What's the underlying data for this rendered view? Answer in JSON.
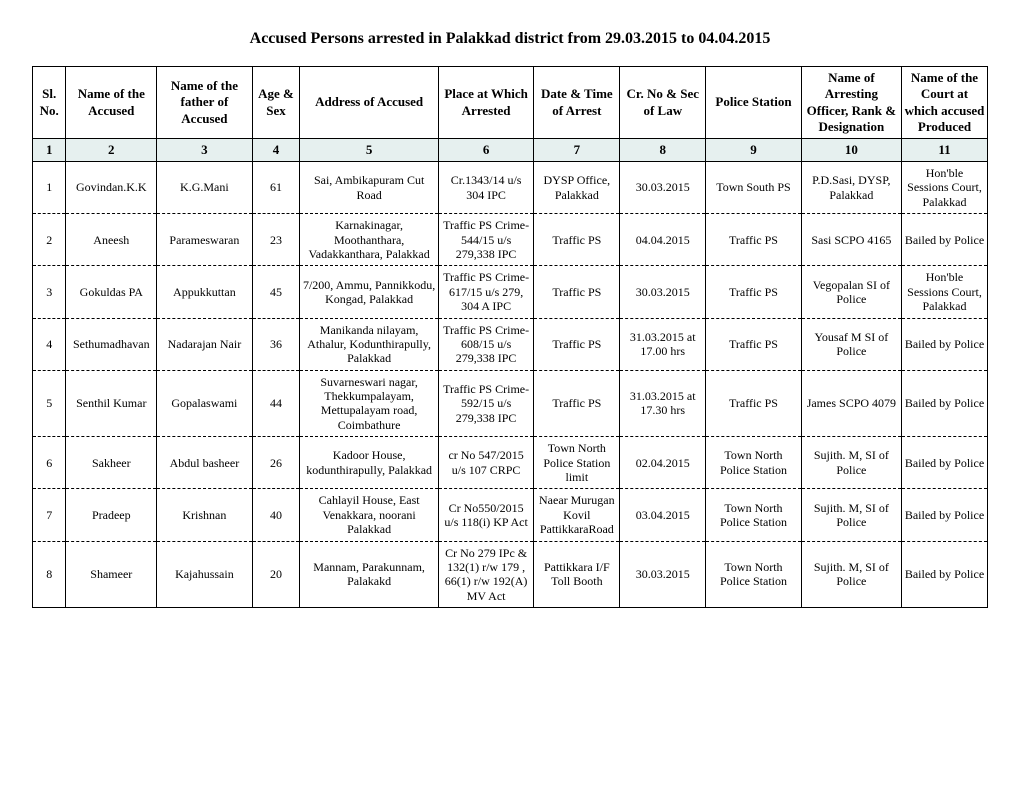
{
  "title": "Accused Persons arrested in  Palakkad  district from  29.03.2015 to 04.04.2015",
  "headers": [
    "Sl. No.",
    "Name of the Accused",
    "Name of the father of Accused",
    "Age & Sex",
    "Address of Accused",
    "Place at Which Arrested",
    "Date & Time of Arrest",
    "Cr. No & Sec of Law",
    "Police Station",
    "Name of Arresting Officer, Rank & Designation",
    "Name of the Court at which accused Produced"
  ],
  "colnums": [
    "1",
    "2",
    "3",
    "4",
    "5",
    "6",
    "7",
    "8",
    "9",
    "10",
    "11"
  ],
  "rows": [
    {
      "sl": "1",
      "accused": "Govindan.K.K",
      "father": "K.G.Mani",
      "age": "61",
      "address": "Sai, Ambikapuram Cut Road",
      "place": "Cr.1343/14 u/s 304 IPC",
      "datetime": "DYSP Office, Palakkad",
      "crno": "30.03.2015",
      "ps": "Town South PS",
      "officer": "P.D.Sasi, DYSP, Palakkad",
      "court": "Hon'ble Sessions Court, Palakkad"
    },
    {
      "sl": "2",
      "accused": "Aneesh",
      "father": "Parameswaran",
      "age": "23",
      "address": "Karnakinagar, Moothanthara, Vadakkanthara, Palakkad",
      "place": "Traffic PS Crime- 544/15 u/s 279,338 IPC",
      "datetime": "Traffic PS",
      "crno": "04.04.2015",
      "ps": "Traffic PS",
      "officer": "Sasi SCPO 4165",
      "court": "Bailed by Police"
    },
    {
      "sl": "3",
      "accused": "Gokuldas PA",
      "father": "Appukkuttan",
      "age": "45",
      "address": "7/200, Ammu, Pannikkodu, Kongad, Palakkad",
      "place": "Traffic PS Crime- 617/15 u/s 279, 304 A IPC",
      "datetime": "Traffic PS",
      "crno": "30.03.2015",
      "ps": "Traffic PS",
      "officer": "Vegopalan SI of Police",
      "court": "Hon'ble Sessions Court, Palakkad"
    },
    {
      "sl": "4",
      "accused": "Sethumadhavan",
      "father": "Nadarajan Nair",
      "age": "36",
      "address": "Manikanda nilayam, Athalur, Kodunthirapully, Palakkad",
      "place": "Traffic PS Crime- 608/15 u/s 279,338 IPC",
      "datetime": "Traffic PS",
      "crno": "31.03.2015 at 17.00 hrs",
      "ps": "Traffic PS",
      "officer": "Yousaf M SI of Police",
      "court": "Bailed by Police"
    },
    {
      "sl": "5",
      "accused": "Senthil Kumar",
      "father": "Gopalaswami",
      "age": "44",
      "address": "Suvarneswari nagar, Thekkumpalayam, Mettupalayam road, Coimbathure",
      "place": "Traffic PS Crime- 592/15 u/s 279,338 IPC",
      "datetime": "Traffic PS",
      "crno": "31.03.2015 at 17.30 hrs",
      "ps": "Traffic PS",
      "officer": "James SCPO 4079",
      "court": "Bailed by Police"
    },
    {
      "sl": "6",
      "accused": "Sakheer",
      "father": "Abdul basheer",
      "age": "26",
      "address": "Kadoor House, kodunthirapully, Palakkad",
      "place": "cr No 547/2015 u/s 107 CRPC",
      "datetime": "Town North Police Station limit",
      "crno": "02.04.2015",
      "ps": "Town North Police Station",
      "officer": "Sujith. M, SI of Police",
      "court": "Bailed by Police"
    },
    {
      "sl": "7",
      "accused": "Pradeep",
      "father": "Krishnan",
      "age": "40",
      "address": "Cahlayil House, East Venakkara, noorani Palakkad",
      "place": "Cr No550/2015 u/s 118(i) KP Act",
      "datetime": "Naear Murugan Kovil PattikkaraRoad",
      "crno": "03.04.2015",
      "ps": "Town North Police Station",
      "officer": "Sujith. M, SI of Police",
      "court": "Bailed by Police"
    },
    {
      "sl": "8",
      "accused": "Shameer",
      "father": "Kajahussain",
      "age": "20",
      "address": "Mannam, Parakunnam, Palakakd",
      "place": "Cr No 279 IPc & 132(1) r/w 179 , 66(1) r/w 192(A) MV Act",
      "datetime": "Pattikkara I/F Toll Booth",
      "crno": "30.03.2015",
      "ps": "Town North Police Station",
      "officer": "Sujith. M, SI of Police",
      "court": "Bailed by Police"
    }
  ]
}
